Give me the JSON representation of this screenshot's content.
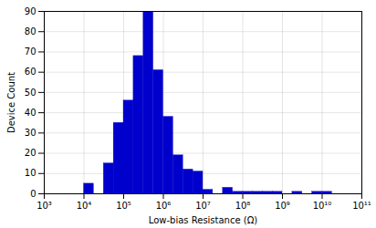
{
  "chart_data": {
    "type": "histogram",
    "xlabel": "Low-bias Resistance (Ω)",
    "ylabel": "Device Count",
    "bins": [
      3162.3,
      10000,
      17783,
      31623,
      56234,
      100000,
      177828,
      316228,
      562341,
      1000000,
      1778279,
      3162278,
      5623413,
      10000000,
      17782794,
      31622776,
      56234132,
      100000000,
      177827941,
      316227766,
      562341325,
      1000000000,
      1778279410,
      3162277660,
      5623413252,
      10000000000,
      17782794100
    ],
    "values": [
      0,
      5,
      0,
      15,
      35,
      46,
      68,
      90,
      61,
      38,
      19,
      12,
      11,
      2,
      0,
      3,
      1,
      1,
      1,
      1,
      1,
      0,
      1,
      0,
      1,
      1
    ],
    "color": "#0000cc",
    "log": "x",
    "xlim": [
      1000,
      100000000000
    ],
    "xticks": [
      {
        "value": 1000,
        "label": "10³"
      },
      {
        "value": 10000,
        "label": "10⁴"
      },
      {
        "value": 100000,
        "label": "10⁵"
      },
      {
        "value": 1000000,
        "label": "10⁶"
      },
      {
        "value": 10000000,
        "label": "10⁷"
      },
      {
        "value": 100000000,
        "label": "10⁸"
      },
      {
        "value": 1000000000,
        "label": "10⁹"
      },
      {
        "value": 10000000000,
        "label": "10¹⁰"
      },
      {
        "value": 100000000000,
        "label": "10¹¹"
      }
    ],
    "ylim": [
      0,
      90
    ],
    "yticks": [
      0,
      10,
      20,
      30,
      40,
      50,
      60,
      70,
      80,
      90
    ],
    "grid": true
  }
}
